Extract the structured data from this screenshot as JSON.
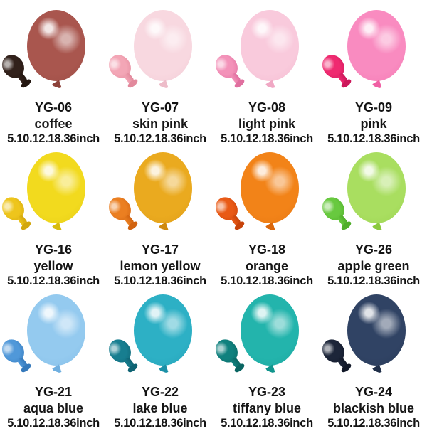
{
  "page": {
    "background": "#ffffff",
    "description_labels": {
      "size_line": "5.10.12.18.36inch"
    }
  },
  "products": [
    {
      "code": "YG-06",
      "color_name": "coffee",
      "sizes": "5.10.12.18.36inch",
      "colors": {
        "large": "#A9564E",
        "large_dark": "#8C423A",
        "small": "#32211B",
        "small_dark": "#231610"
      }
    },
    {
      "code": "YG-07",
      "color_name": "skin pink",
      "sizes": "5.10.12.18.36inch",
      "colors": {
        "large": "#F8D8E0",
        "large_dark": "#EDBCC9",
        "small": "#F3A6B6",
        "small_dark": "#E2899C"
      }
    },
    {
      "code": "YG-08",
      "color_name": "light pink",
      "sizes": "5.10.12.18.36inch",
      "colors": {
        "large": "#F9CADC",
        "large_dark": "#F0A8C4",
        "small": "#F392B9",
        "small_dark": "#E06F9F"
      }
    },
    {
      "code": "YG-09",
      "color_name": "pink",
      "sizes": "5.10.12.18.36inch",
      "colors": {
        "large": "#F98BC0",
        "large_dark": "#F060A4",
        "small": "#EF2A70",
        "small_dark": "#CC175A"
      }
    },
    {
      "code": "YG-16",
      "color_name": "yellow",
      "sizes": "5.10.12.18.36inch",
      "colors": {
        "large": "#F2DA1E",
        "large_dark": "#D8BC0E",
        "small": "#EEC51C",
        "small_dark": "#D2A70D"
      }
    },
    {
      "code": "YG-17",
      "color_name": "lemon yellow",
      "sizes": "5.10.12.18.36inch",
      "colors": {
        "large": "#EAAA1F",
        "large_dark": "#CF8A10",
        "small": "#EB7F21",
        "small_dark": "#D16310"
      }
    },
    {
      "code": "YG-18",
      "color_name": "orange",
      "sizes": "5.10.12.18.36inch",
      "colors": {
        "large": "#F28318",
        "large_dark": "#DA670C",
        "small": "#E95A16",
        "small_dark": "#C7430A"
      }
    },
    {
      "code": "YG-26",
      "color_name": "apple green",
      "sizes": "5.10.12.18.36inch",
      "colors": {
        "large": "#A9DE60",
        "large_dark": "#8BC93E",
        "small": "#68C93F",
        "small_dark": "#4FAE2A"
      }
    },
    {
      "code": "YG-21",
      "color_name": "aqua blue",
      "sizes": "5.10.12.18.36inch",
      "colors": {
        "large": "#94CAEF",
        "large_dark": "#6FAFE0",
        "small": "#5098D9",
        "small_dark": "#3579BB"
      }
    },
    {
      "code": "YG-22",
      "color_name": "lake blue",
      "sizes": "5.10.12.18.36inch",
      "colors": {
        "large": "#2DB0C5",
        "large_dark": "#1B90A7",
        "small": "#177E90",
        "small_dark": "#0E6373"
      }
    },
    {
      "code": "YG-23",
      "color_name": "tiffany blue",
      "sizes": "5.10.12.18.36inch",
      "colors": {
        "large": "#23B4AC",
        "large_dark": "#11958D",
        "small": "#10817E",
        "small_dark": "#096562"
      }
    },
    {
      "code": "YG-24",
      "color_name": "blackish blue",
      "sizes": "5.10.12.18.36inch",
      "colors": {
        "large": "#304364",
        "large_dark": "#202F49",
        "small": "#1C2539",
        "small_dark": "#111828"
      }
    }
  ]
}
